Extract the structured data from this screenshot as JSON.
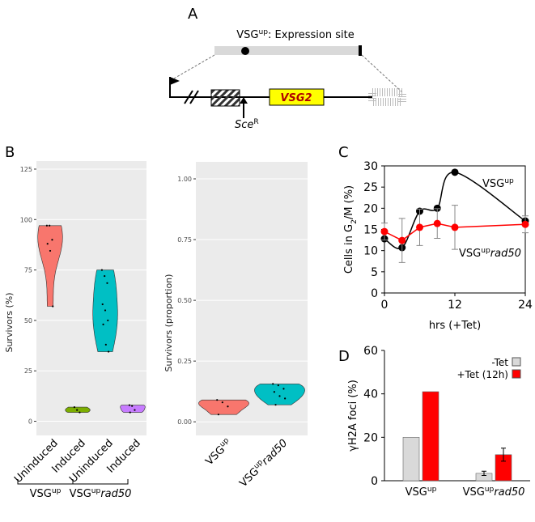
{
  "panel_labels": [
    "A",
    "B",
    "C",
    "D"
  ],
  "diagram": {
    "site_label": [
      {
        "text": "VSG"
      },
      {
        "sup": "up"
      },
      {
        "text": ": Expression site"
      }
    ],
    "gene": "VSG2",
    "cut_site": [
      {
        "italic": "Sce"
      },
      {
        "sup": "R"
      }
    ]
  },
  "chart_data": [
    {
      "type": "violin",
      "y_label": "Survivors (%)",
      "categories": [
        "Uninduced",
        "Induced",
        "Uninduced",
        "Induced"
      ],
      "values": [
        [
          97,
          97,
          90,
          88,
          84.5,
          57
        ],
        [
          7,
          5.6,
          4.4
        ],
        [
          75,
          72,
          68.5,
          58,
          55,
          50,
          48,
          38,
          34.5
        ],
        [
          8,
          7.6,
          5.6,
          4.4
        ]
      ],
      "colors": [
        "#f8766d",
        "#7cae00",
        "#00bfc4",
        "#c77cff"
      ],
      "ylim": [
        -7,
        129
      ],
      "yticks": [
        0,
        25,
        50,
        75,
        100,
        125
      ],
      "grid": true,
      "groups": [
        [
          {
            "text": "VSG"
          },
          {
            "sup": "up"
          }
        ],
        [
          {
            "text": "VSG"
          },
          {
            "sup": "up"
          },
          {
            "italic": "rad50"
          }
        ]
      ]
    },
    {
      "type": "violin",
      "y_label": "Survivors (proportion)",
      "categories": [
        [
          {
            "text": "VSG"
          },
          {
            "sup": "up"
          }
        ],
        [
          {
            "text": "VSG"
          },
          {
            "sup": "up"
          },
          {
            "italic": "rad50"
          }
        ]
      ],
      "values": [
        [
          0.09,
          0.08,
          0.063,
          0.03
        ],
        [
          0.156,
          0.15,
          0.136,
          0.123,
          0.106,
          0.096,
          0.07
        ]
      ],
      "colors": [
        "#f8766d",
        "#00bfc4"
      ],
      "ylim": [
        -0.056,
        1.07
      ],
      "yticks": [
        {
          "value": 0,
          "label": "0.00"
        },
        {
          "value": 0.25,
          "label": "0.25"
        },
        {
          "value": 0.5,
          "label": "0.50"
        },
        {
          "value": 0.75,
          "label": "0.75"
        },
        {
          "value": 1,
          "label": "1.00"
        }
      ],
      "grid": true
    },
    {
      "type": "line",
      "x_label": "hrs (+Tet)",
      "y_label": [
        {
          "text": "Cells in G"
        },
        {
          "sub": "2"
        },
        {
          "text": "/M (%)"
        }
      ],
      "x": [
        0,
        3,
        6,
        9,
        12,
        24
      ],
      "series": [
        {
          "name": [
            {
              "text": "VSG"
            },
            {
              "sup": "up"
            }
          ],
          "color": "#000000",
          "values": [
            12.8,
            10.7,
            19.3,
            20,
            28.5,
            17
          ],
          "smooth": true
        },
        {
          "name": [
            {
              "text": "VSG"
            },
            {
              "sup": "up"
            },
            {
              "italic": "rad50"
            }
          ],
          "color": "#ff0000",
          "values": [
            14.5,
            12.4,
            15.5,
            16.4,
            15.5,
            16.2
          ],
          "errors": [
            2,
            5.2,
            4.3,
            3.5,
            5.2,
            2
          ]
        }
      ],
      "xlim": [
        0,
        24
      ],
      "xticks": [
        0,
        12,
        24
      ],
      "ylim": [
        0,
        30
      ],
      "yticks": [
        0,
        5,
        10,
        15,
        20,
        25,
        30
      ]
    },
    {
      "type": "bar",
      "y_label": "γH2A foci (%)",
      "categories": [
        [
          {
            "text": "VSG"
          },
          {
            "sup": "up"
          }
        ],
        [
          {
            "text": "VSG"
          },
          {
            "sup": "up"
          },
          {
            "italic": "rad50"
          }
        ]
      ],
      "series": [
        {
          "name": "-Tet",
          "color": "#d9d9d9",
          "values": [
            20,
            3.4
          ],
          "errors": [
            null,
            1
          ]
        },
        {
          "name": "+Tet (12h)",
          "color": "#ff0000",
          "values": [
            41,
            12
          ],
          "errors": [
            null,
            3
          ]
        }
      ],
      "ylim": [
        0,
        60
      ],
      "yticks": [
        0,
        20,
        40,
        60
      ],
      "legend": "top-right"
    }
  ]
}
